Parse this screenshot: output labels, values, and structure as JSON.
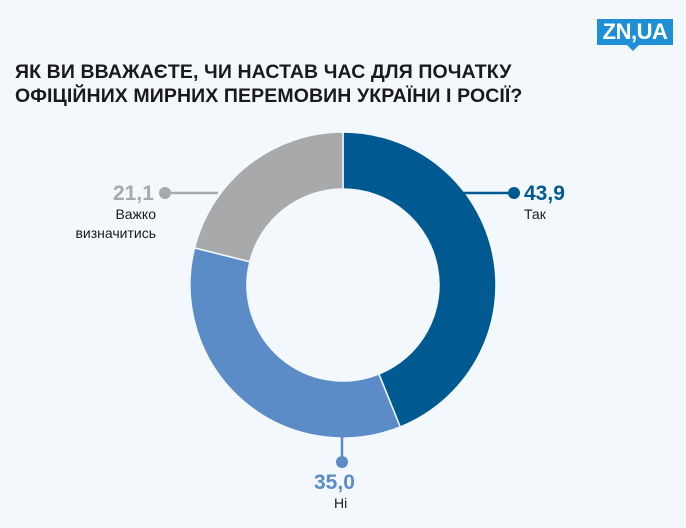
{
  "brand": {
    "logo_text": "ZN,UA",
    "logo_color": "#1e8fd6"
  },
  "title_lines": [
    "ЯК ВИ ВВАЖАЄТЕ, ЧИ НАСТАВ ЧАС ДЛЯ ПОЧАТКУ",
    "ОФІЦІЙНИХ МИРНИХ ПЕРЕМОВИН УКРАЇНИ І РОСІЇ?"
  ],
  "labels": {
    "tak_value": "43,9",
    "tak_label": "Так",
    "ni_value": "35,0",
    "ni_label": "Ні",
    "vazhko_value": "21,1",
    "vazhko_label_1": "Важко",
    "vazhko_label_2": "визначитись"
  },
  "chart_data": {
    "type": "pie",
    "subtype": "donut",
    "title": "Як ви вважаєте, чи настав час для початку офіційних мирних перемовин України і Росії?",
    "categories": [
      "Так",
      "Ні",
      "Важко визначитись"
    ],
    "values": [
      43.9,
      35.0,
      21.1
    ],
    "colors": [
      "#005a91",
      "#5b8cc8",
      "#a8a9ab"
    ],
    "unit": "%",
    "start_angle_deg": 0,
    "direction": "clockwise",
    "legend": "none (callout labels)"
  }
}
